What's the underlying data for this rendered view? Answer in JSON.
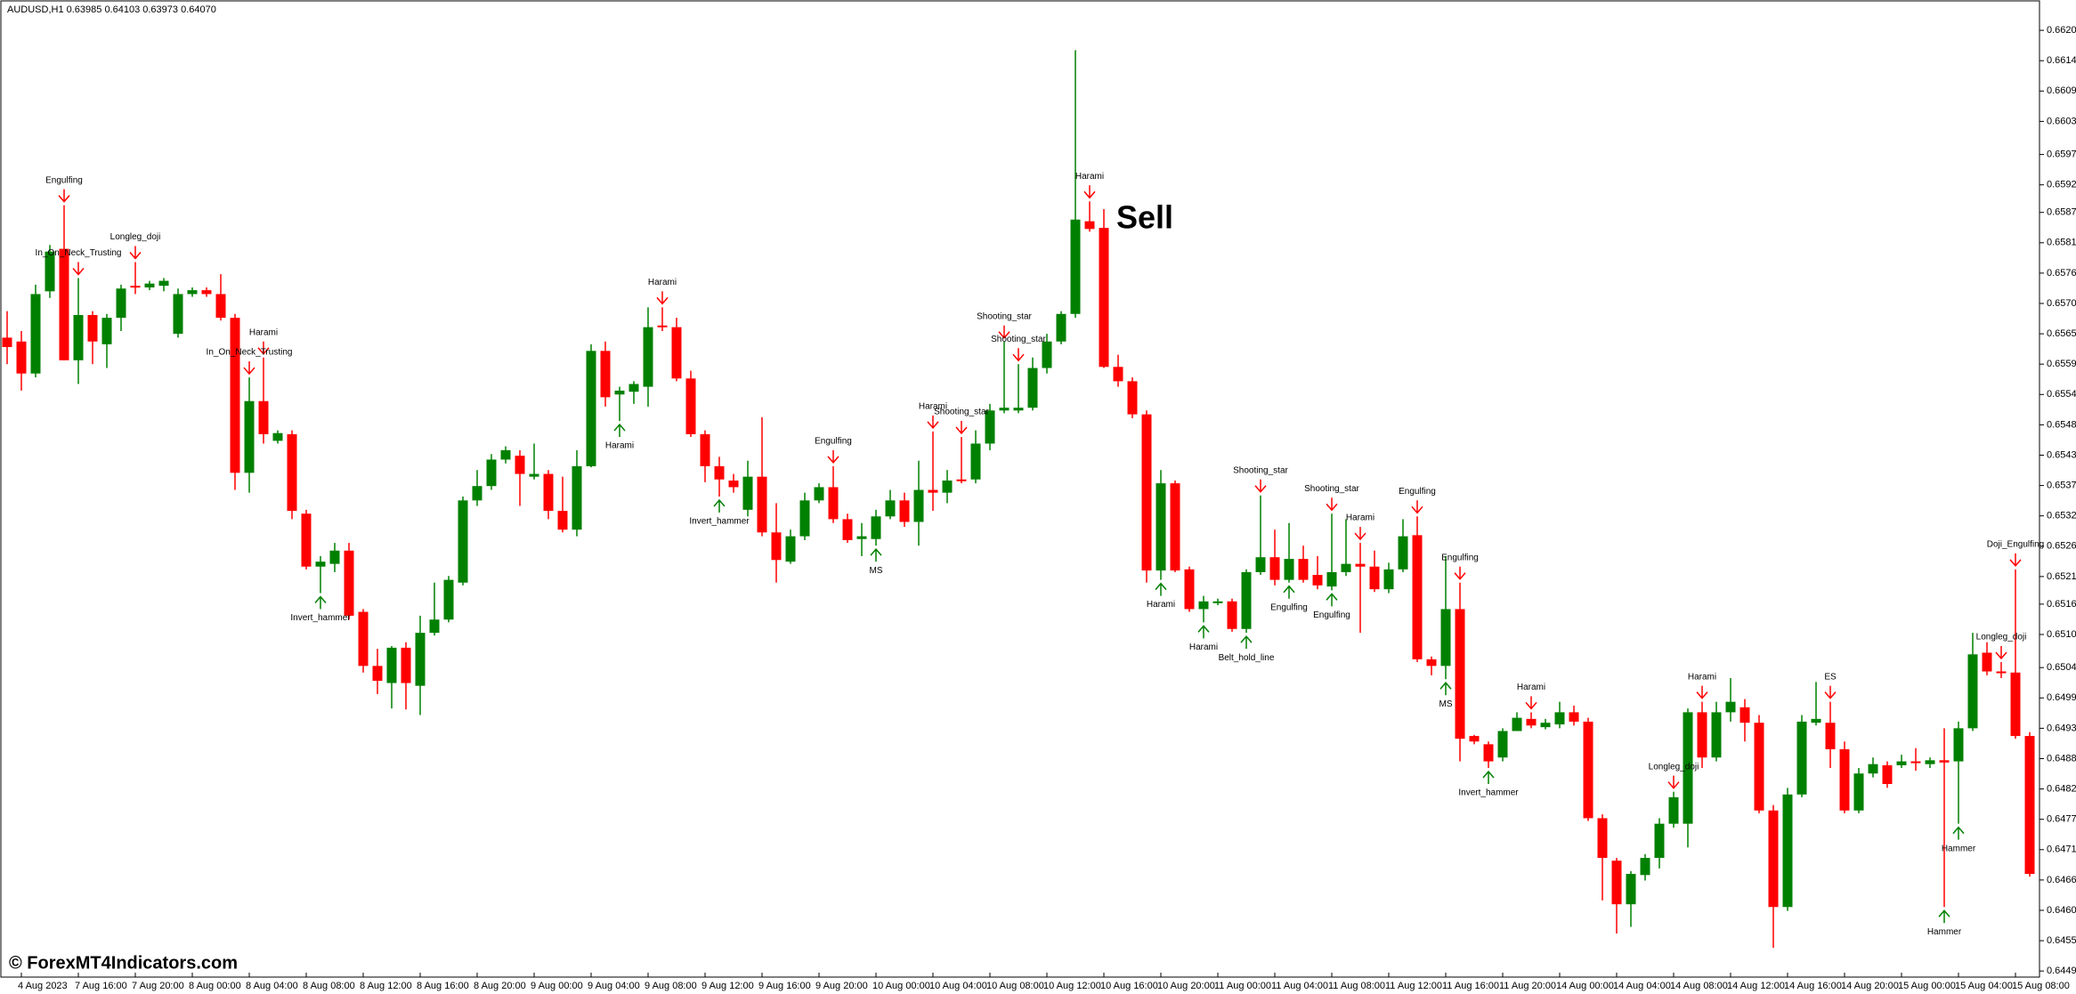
{
  "chart_data": {
    "type": "candlestick",
    "header": "AUDUSD,H1  0.63985 0.64103 0.63973 0.64070",
    "watermark": "© ForexMT4Indicators.com",
    "up_color": "#008000",
    "down_color": "#ff0000",
    "categories": [
      null,
      "4 Aug 2023",
      null,
      null,
      null,
      "7 Aug 16:00",
      null,
      null,
      null,
      "7 Aug 20:00",
      null,
      null,
      null,
      "8 Aug 00:00",
      null,
      null,
      null,
      "8 Aug 04:00",
      null,
      null,
      null,
      "8 Aug 08:00",
      null,
      null,
      null,
      "8 Aug 12:00",
      null,
      null,
      null,
      "8 Aug 16:00",
      null,
      null,
      null,
      "8 Aug 20:00",
      null,
      null,
      null,
      "9 Aug 00:00",
      null,
      null,
      null,
      "9 Aug 04:00",
      null,
      null,
      null,
      "9 Aug 08:00",
      null,
      null,
      null,
      "9 Aug 12:00",
      null,
      null,
      null,
      "9 Aug 16:00",
      null,
      null,
      null,
      "9 Aug 20:00",
      null,
      null,
      null,
      "10 Aug 00:00",
      null,
      null,
      null,
      "10 Aug 04:00",
      null,
      null,
      null,
      "10 Aug 08:00",
      null,
      null,
      null,
      "10 Aug 12:00",
      null,
      null,
      null,
      "10 Aug 16:00",
      null,
      null,
      null,
      "10 Aug 20:00",
      null,
      null,
      null,
      "11 Aug 00:00",
      null,
      null,
      null,
      "11 Aug 04:00",
      null,
      null,
      null,
      "11 Aug 08:00",
      null,
      null,
      null,
      "11 Aug 12:00",
      null,
      null,
      null,
      "11 Aug 16:00",
      null,
      null,
      null,
      "11 Aug 20:00",
      null,
      null,
      null,
      "14 Aug 00:00",
      null,
      null,
      null,
      "14 Aug 04:00",
      null,
      null,
      null,
      "14 Aug 08:00",
      null,
      null,
      null,
      "14 Aug 12:00",
      null,
      null,
      null,
      "14 Aug 16:00",
      null,
      null,
      null,
      "14 Aug 20:00",
      null,
      null,
      null,
      "15 Aug 00:00",
      null,
      null,
      null,
      "15 Aug 04:00",
      null,
      null,
      null,
      "15 Aug 08:00",
      null
    ],
    "open": [
      0.65643,
      0.65636,
      0.65578,
      0.65727,
      0.65804,
      0.65602,
      0.65684,
      0.65631,
      0.65679,
      0.65737,
      0.65734,
      0.65737,
      0.6565,
      0.65722,
      0.65729,
      0.65722,
      0.65679,
      0.65398,
      0.65528,
      0.65456,
      0.65468,
      0.65324,
      0.65228,
      0.65233,
      0.65257,
      0.65146,
      0.65048,
      0.65017,
      0.65081,
      0.65012,
      0.65108,
      0.65132,
      0.65199,
      0.65348,
      0.65374,
      0.65422,
      0.65429,
      0.65391,
      0.65396,
      0.65329,
      0.65295,
      0.6541,
      0.65619,
      0.6554,
      0.65545,
      0.65554,
      0.65665,
      0.65662,
      0.65569,
      0.65468,
      0.6541,
      0.65384,
      0.65331,
      0.65391,
      0.6529,
      0.65237,
      0.65283,
      0.65348,
      0.65372,
      0.65314,
      0.65278,
      0.65278,
      0.65319,
      0.65348,
      0.65309,
      0.65367,
      0.65362,
      0.65386,
      0.65386,
      0.65451,
      0.65511,
      0.65511,
      0.65516,
      0.65588,
      0.65636,
      0.65686,
      0.65854,
      0.65842,
      0.6559,
      0.65564,
      0.65504,
      0.65221,
      0.65379,
      0.65223,
      0.65151,
      0.65163,
      0.65165,
      0.65115,
      0.65218,
      0.65245,
      0.65204,
      0.65242,
      0.65213,
      0.65192,
      0.65218,
      0.65233,
      0.65228,
      0.65187,
      0.65223,
      0.65285,
      0.6506,
      0.65048,
      0.65151,
      0.64921,
      0.64906,
      0.64882,
      0.6493,
      0.64952,
      0.64937,
      0.64942,
      0.64964,
      0.64947,
      0.64772,
      0.64695,
      0.64616,
      0.64669,
      0.647,
      0.64762,
      0.64762,
      0.64964,
      0.64882,
      0.64964,
      0.64973,
      0.64945,
      0.64786,
      0.64611,
      0.64815,
      0.64945,
      0.64945,
      0.64897,
      0.64786,
      0.64853,
      0.64868,
      0.64868,
      0.64875,
      0.6487,
      0.64877,
      0.64875,
      0.64935,
      0.65072,
      0.65038,
      0.65036,
      0.64921
    ],
    "high": [
      0.65691,
      0.65655,
      0.65739,
      0.65811,
      0.65883,
      0.65751,
      0.65691,
      0.65686,
      0.65739,
      0.6578,
      0.65746,
      0.65751,
      0.65732,
      0.65734,
      0.65734,
      0.65758,
      0.65686,
      0.65571,
      0.65607,
      0.65475,
      0.65475,
      0.65331,
      0.65247,
      0.65271,
      0.65271,
      0.65151,
      0.65079,
      0.65084,
      0.65091,
      0.65139,
      0.65199,
      0.65211,
      0.65355,
      0.65403,
      0.65432,
      0.65446,
      0.65439,
      0.65451,
      0.65403,
      0.65391,
      0.65439,
      0.65631,
      0.65636,
      0.65554,
      0.65564,
      0.65698,
      0.65698,
      0.65679,
      0.65583,
      0.65475,
      0.65427,
      0.65396,
      0.6542,
      0.65499,
      0.65343,
      0.65295,
      0.65362,
      0.65379,
      0.6541,
      0.65324,
      0.65307,
      0.65331,
      0.65367,
      0.65362,
      0.6542,
      0.65473,
      0.65403,
      0.65463,
      0.65475,
      0.65523,
      0.65636,
      0.65595,
      0.65607,
      0.6565,
      0.65691,
      0.66164,
      0.6589,
      0.65876,
      0.65612,
      0.65571,
      0.65511,
      0.65403,
      0.65384,
      0.65228,
      0.65175,
      0.6517,
      0.6517,
      0.65223,
      0.65357,
      0.65295,
      0.65307,
      0.65266,
      0.65247,
      0.65324,
      0.65314,
      0.65271,
      0.65257,
      0.65235,
      0.65314,
      0.65319,
      0.65065,
      0.65247,
      0.65199,
      0.64923,
      0.64911,
      0.64935,
      0.64964,
      0.64964,
      0.64952,
      0.64983,
      0.64976,
      0.64954,
      0.64779,
      0.647,
      0.64676,
      0.64707,
      0.64772,
      0.6482,
      0.64971,
      0.64983,
      0.64983,
      0.65026,
      0.64988,
      0.64959,
      0.64796,
      0.64827,
      0.64959,
      0.65019,
      0.64983,
      0.64911,
      0.64863,
      0.64882,
      0.64875,
      0.64887,
      0.64899,
      0.64882,
      0.64935,
      0.64947,
      0.65108,
      0.65091,
      0.65055,
      0.65223,
      0.64928
    ],
    "low": [
      0.65595,
      0.65547,
      0.65571,
      0.65715,
      0.65602,
      0.65559,
      0.65595,
      0.65588,
      0.65655,
      0.65722,
      0.65729,
      0.65727,
      0.65643,
      0.65717,
      0.65717,
      0.65674,
      0.65367,
      0.65362,
      0.65451,
      0.65451,
      0.65314,
      0.65223,
      0.6518,
      0.65218,
      0.65132,
      0.65036,
      0.64997,
      0.64971,
      0.64969,
      0.64959,
      0.65103,
      0.65127,
      0.65194,
      0.65338,
      0.65367,
      0.65415,
      0.65338,
      0.65386,
      0.65314,
      0.6529,
      0.65283,
      0.65408,
      0.65518,
      0.65492,
      0.65523,
      0.65518,
      0.65655,
      0.65564,
      0.65463,
      0.65381,
      0.65355,
      0.65362,
      0.65319,
      0.65283,
      0.65199,
      0.65233,
      0.65276,
      0.65343,
      0.65307,
      0.65271,
      0.65247,
      0.65266,
      0.65314,
      0.653,
      0.65266,
      0.65329,
      0.65343,
      0.65379,
      0.65379,
      0.65439,
      0.65506,
      0.65506,
      0.65511,
      0.65578,
      0.65631,
      0.65679,
      0.65835,
      0.65588,
      0.65554,
      0.65497,
      0.65199,
      0.65204,
      0.65218,
      0.65146,
      0.65127,
      0.65158,
      0.6511,
      0.65108,
      0.65213,
      0.65194,
      0.65199,
      0.65199,
      0.65187,
      0.65185,
      0.65211,
      0.65108,
      0.65182,
      0.6518,
      0.65218,
      0.65055,
      0.65031,
      0.65024,
      0.64875,
      0.64906,
      0.64863,
      0.64875,
      0.6493,
      0.64935,
      0.64933,
      0.64935,
      0.6494,
      0.64767,
      0.64623,
      0.64563,
      0.64575,
      0.64659,
      0.64681,
      0.64755,
      0.64719,
      0.64863,
      0.64875,
      0.64947,
      0.64911,
      0.64781,
      0.64537,
      0.64604,
      0.6481,
      0.6494,
      0.64863,
      0.64781,
      0.64781,
      0.64846,
      0.64827,
      0.64863,
      0.64858,
      0.64863,
      0.64611,
      0.64762,
      0.6493,
      0.65031,
      0.65026,
      0.64916,
      0.64666
    ],
    "close": [
      0.65626,
      0.65578,
      0.65722,
      0.65799,
      0.65602,
      0.65684,
      0.65636,
      0.65679,
      0.65732,
      0.65734,
      0.65741,
      0.65746,
      0.65722,
      0.65729,
      0.65722,
      0.65679,
      0.65398,
      0.65528,
      0.65468,
      0.6547,
      0.65329,
      0.65228,
      0.65237,
      0.65257,
      0.65139,
      0.65048,
      0.65021,
      0.65081,
      0.65017,
      0.65108,
      0.65132,
      0.65204,
      0.65348,
      0.65374,
      0.65422,
      0.65439,
      0.65396,
      0.65396,
      0.65329,
      0.65295,
      0.6541,
      0.65619,
      0.65535,
      0.65547,
      0.65559,
      0.65662,
      0.65662,
      0.65569,
      0.65468,
      0.6541,
      0.65386,
      0.65372,
      0.65391,
      0.6529,
      0.6524,
      0.65283,
      0.65348,
      0.65372,
      0.65314,
      0.65276,
      0.65283,
      0.65319,
      0.65348,
      0.65309,
      0.65367,
      0.65362,
      0.65384,
      0.65384,
      0.65451,
      0.65511,
      0.65516,
      0.65516,
      0.65588,
      0.65636,
      0.65686,
      0.65857,
      0.6584,
      0.6559,
      0.65564,
      0.65504,
      0.65221,
      0.65379,
      0.65221,
      0.65151,
      0.65165,
      0.65165,
      0.65115,
      0.65218,
      0.65245,
      0.65204,
      0.65242,
      0.65204,
      0.65194,
      0.65218,
      0.65233,
      0.65228,
      0.65187,
      0.65223,
      0.65283,
      0.6506,
      0.65048,
      0.65151,
      0.64916,
      0.64911,
      0.64875,
      0.6493,
      0.64954,
      0.6494,
      0.64945,
      0.64964,
      0.64947,
      0.64772,
      0.647,
      0.64616,
      0.64671,
      0.647,
      0.64762,
      0.6481,
      0.64964,
      0.64882,
      0.64964,
      0.64983,
      0.64945,
      0.64786,
      0.64611,
      0.64815,
      0.64947,
      0.64952,
      0.64897,
      0.64786,
      0.64853,
      0.6487,
      0.64834,
      0.64875,
      0.64873,
      0.64877,
      0.64873,
      0.64935,
      0.65069,
      0.65038,
      0.65036,
      0.64921,
      0.64671
    ],
    "ylim": [
      0.66255,
      0.64484
    ],
    "yticks": [
      {
        "value": 0.662,
        "label": "0.66200"
      },
      0.66145,
      {
        "value": 0.6609,
        "label": "0.66090"
      },
      0.66035,
      0.65975,
      {
        "value": 0.6592,
        "label": "0.65920"
      },
      {
        "value": 0.6587,
        "label": "0.65870"
      },
      0.65815,
      {
        "value": 0.6576,
        "label": "0.65760"
      },
      0.65705,
      {
        "value": 0.6565,
        "label": "0.65650"
      },
      0.65595,
      {
        "value": 0.6554,
        "label": "0.65540"
      },
      0.65485,
      {
        "value": 0.6543,
        "label": "0.65430"
      },
      0.65375,
      {
        "value": 0.6532,
        "label": "0.65320"
      },
      0.65265,
      {
        "value": 0.6521,
        "label": "0.65210"
      },
      {
        "value": 0.6516,
        "label": "0.65160"
      },
      0.65105,
      0.65045,
      {
        "value": 0.6499,
        "label": "0.64990"
      },
      0.64935,
      {
        "value": 0.6488,
        "label": "0.64880"
      },
      0.64825,
      {
        "value": 0.6477,
        "label": "0.64770"
      },
      0.64715,
      {
        "value": 0.6466,
        "label": "0.64660"
      },
      0.64605,
      {
        "value": 0.6455,
        "label": "0.64550"
      },
      0.64495
    ],
    "annotations": [
      {
        "text": "Engulfing",
        "index": 4,
        "signal": "bearish"
      },
      {
        "text": "In_On_Neck_Trusting",
        "index": 5,
        "signal": "bearish"
      },
      {
        "text": "Longleg_doji",
        "index": 9,
        "signal": "bearish"
      },
      {
        "text": "Harami",
        "index": 18,
        "signal": "bearish"
      },
      {
        "text": "In_On_Neck_Trusting",
        "index": 17,
        "signal": "bearish"
      },
      {
        "text": "Invert_hammer",
        "index": 22,
        "signal": "bullish"
      },
      {
        "text": "Harami",
        "index": 46,
        "signal": "bearish"
      },
      {
        "text": "Harami",
        "index": 43,
        "signal": "bullish"
      },
      {
        "text": "Invert_hammer",
        "index": 50,
        "signal": "bullish"
      },
      {
        "text": "Engulfing",
        "index": 58,
        "signal": "bearish"
      },
      {
        "text": "MS",
        "index": 61,
        "signal": "bullish"
      },
      {
        "text": "Harami",
        "index": 65,
        "signal": "bearish"
      },
      {
        "text": "Shooting_star",
        "index": 67,
        "signal": "bearish"
      },
      {
        "text": "Shooting_star",
        "index": 70,
        "signal": "bearish"
      },
      {
        "text": "Shooting_star",
        "index": 71,
        "signal": "bearish"
      },
      {
        "text": "Harami",
        "index": 76,
        "signal": "bearish"
      },
      {
        "text": "Harami",
        "index": 81,
        "signal": "bullish"
      },
      {
        "text": "Harami",
        "index": 84,
        "signal": "bullish"
      },
      {
        "text": "Belt_hold_line",
        "index": 87,
        "signal": "bullish"
      },
      {
        "text": "Shooting_star",
        "index": 88,
        "signal": "bearish"
      },
      {
        "text": "Engulfing",
        "index": 90,
        "signal": "bullish"
      },
      {
        "text": "Shooting_star",
        "index": 93,
        "signal": "bearish"
      },
      {
        "text": "Engulfing",
        "index": 93,
        "signal": "bullish"
      },
      {
        "text": "Harami",
        "index": 95,
        "signal": "bearish"
      },
      {
        "text": "Engulfing",
        "index": 99,
        "signal": "bearish"
      },
      {
        "text": "Engulfing",
        "index": 102,
        "signal": "bearish"
      },
      {
        "text": "MS",
        "index": 101,
        "signal": "bullish"
      },
      {
        "text": "Invert_hammer",
        "index": 104,
        "signal": "bullish"
      },
      {
        "text": "Harami",
        "index": 107,
        "signal": "bearish"
      },
      {
        "text": "Longleg_doji",
        "index": 117,
        "signal": "bearish"
      },
      {
        "text": "Harami",
        "index": 119,
        "signal": "bearish"
      },
      {
        "text": "ES",
        "index": 128,
        "signal": "bearish"
      },
      {
        "text": "Hammer",
        "index": 136,
        "signal": "bullish"
      },
      {
        "text": "Hammer",
        "index": 137,
        "signal": "bullish"
      },
      {
        "text": "Longleg_doji",
        "index": 140,
        "signal": "bearish"
      },
      {
        "text": "Doji_Engulfing",
        "index": 141,
        "signal": "bearish"
      }
    ],
    "signal_label": {
      "text": "Sell",
      "index": 77
    }
  }
}
